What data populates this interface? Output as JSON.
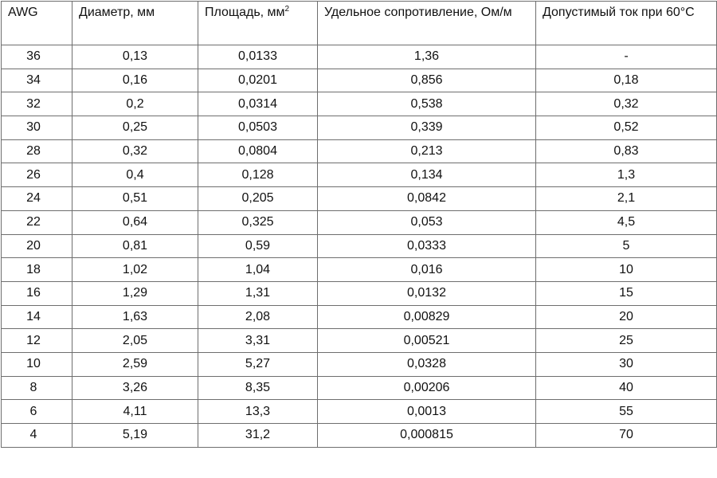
{
  "table": {
    "headers": {
      "awg": "AWG",
      "diameter": "Диаметр, мм",
      "area": "Площадь, мм",
      "area_sup": "2",
      "resistance": "Удельное сопротивление, Ом/м",
      "current": "Допустимый ток при 60°C"
    },
    "rows": [
      {
        "awg": "36",
        "diameter": "0,13",
        "area": "0,0133",
        "resistance": "1,36",
        "current": "-"
      },
      {
        "awg": "34",
        "diameter": "0,16",
        "area": "0,0201",
        "resistance": "0,856",
        "current": "0,18"
      },
      {
        "awg": "32",
        "diameter": "0,2",
        "area": "0,0314",
        "resistance": "0,538",
        "current": "0,32"
      },
      {
        "awg": "30",
        "diameter": "0,25",
        "area": "0,0503",
        "resistance": "0,339",
        "current": "0,52"
      },
      {
        "awg": "28",
        "diameter": "0,32",
        "area": "0,0804",
        "resistance": "0,213",
        "current": "0,83"
      },
      {
        "awg": "26",
        "diameter": "0,4",
        "area": "0,128",
        "resistance": "0,134",
        "current": "1,3"
      },
      {
        "awg": "24",
        "diameter": "0,51",
        "area": "0,205",
        "resistance": "0,0842",
        "current": "2,1"
      },
      {
        "awg": "22",
        "diameter": "0,64",
        "area": "0,325",
        "resistance": "0,053",
        "current": "4,5"
      },
      {
        "awg": "20",
        "diameter": "0,81",
        "area": "0,59",
        "resistance": "0,0333",
        "current": "5"
      },
      {
        "awg": "18",
        "diameter": "1,02",
        "area": "1,04",
        "resistance": "0,016",
        "current": "10"
      },
      {
        "awg": "16",
        "diameter": "1,29",
        "area": "1,31",
        "resistance": "0,0132",
        "current": "15"
      },
      {
        "awg": "14",
        "diameter": "1,63",
        "area": "2,08",
        "resistance": "0,00829",
        "current": "20"
      },
      {
        "awg": "12",
        "diameter": "2,05",
        "area": "3,31",
        "resistance": "0,00521",
        "current": "25"
      },
      {
        "awg": "10",
        "diameter": "2,59",
        "area": "5,27",
        "resistance": "0,0328",
        "current": "30"
      },
      {
        "awg": "8",
        "diameter": "3,26",
        "area": "8,35",
        "resistance": "0,00206",
        "current": "40"
      },
      {
        "awg": "6",
        "diameter": "4,11",
        "area": "13,3",
        "resistance": "0,0013",
        "current": "55"
      },
      {
        "awg": "4",
        "diameter": "5,19",
        "area": "31,2",
        "resistance": "0,000815",
        "current": "70"
      }
    ]
  }
}
